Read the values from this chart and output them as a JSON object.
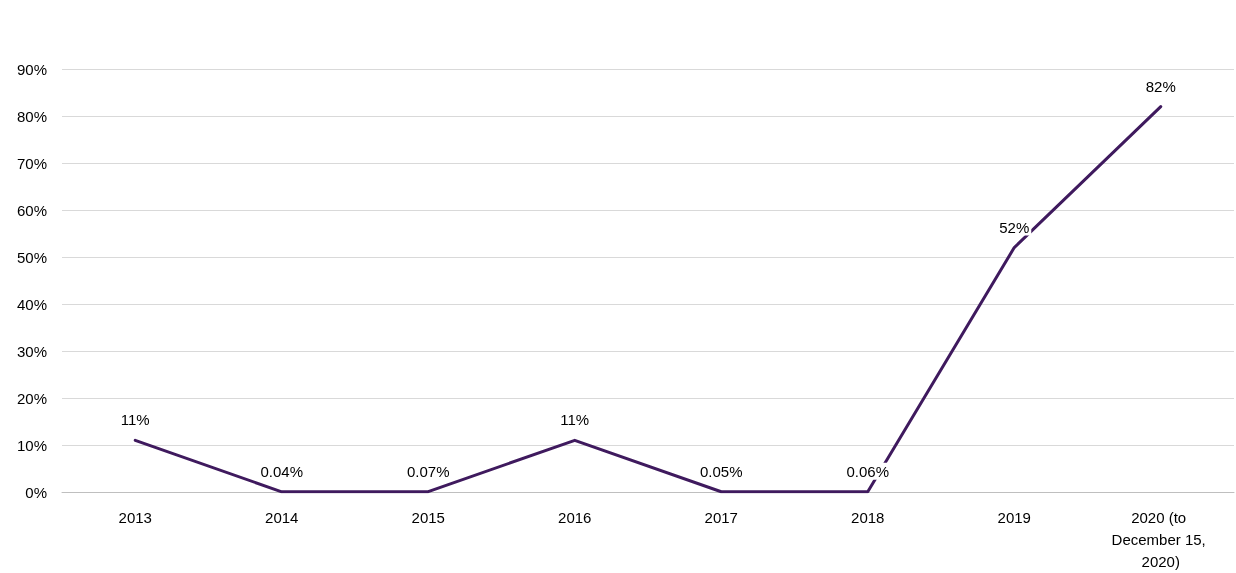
{
  "chart_data": {
    "type": "line",
    "categories": [
      "2013",
      "2014",
      "2015",
      "2016",
      "2017",
      "2018",
      "2019",
      "2020 (to December 15, 2020)"
    ],
    "series": [
      {
        "color": "#3f1a5e",
        "values": [
          11,
          0.04,
          0.07,
          11,
          0.05,
          0.06,
          52,
          82
        ],
        "value_labels": [
          "11%",
          "0.04%",
          "0.07%",
          "11%",
          "0.05%",
          "0.06%",
          "52%",
          "82%"
        ]
      }
    ],
    "ylim": [
      0,
      90
    ],
    "yticks": [
      {
        "value": 0,
        "label": "0%"
      },
      {
        "value": 10,
        "label": "10%"
      },
      {
        "value": 20,
        "label": "20%"
      },
      {
        "value": 30,
        "label": "30%"
      },
      {
        "value": 40,
        "label": "40%"
      },
      {
        "value": 50,
        "label": "50%"
      },
      {
        "value": 60,
        "label": "60%"
      },
      {
        "value": 70,
        "label": "70%"
      },
      {
        "value": 80,
        "label": "80%"
      },
      {
        "value": 90,
        "label": "90%"
      }
    ],
    "grid": "y",
    "marker": "none",
    "line_style": "solid"
  }
}
